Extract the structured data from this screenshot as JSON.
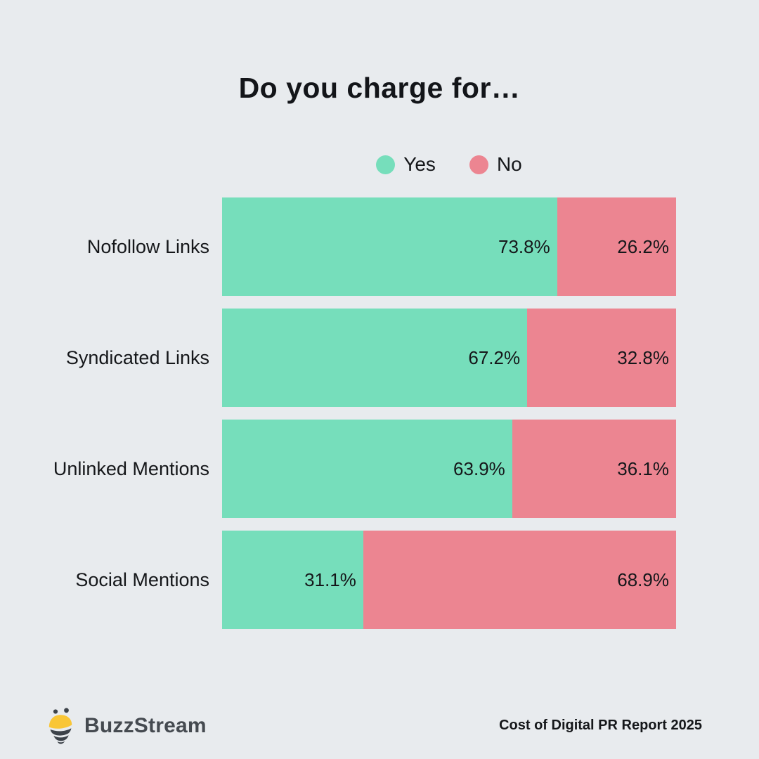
{
  "page": {
    "background": "#E8EBEE"
  },
  "chart_data": {
    "type": "bar",
    "orientation": "horizontal",
    "stacked": true,
    "title": "Do you charge for…",
    "categories": [
      "Nofollow Links",
      "Syndicated Links",
      "Unlinked Mentions",
      "Social Mentions"
    ],
    "series": [
      {
        "name": "Yes",
        "color": "#76DEBB",
        "values": [
          73.8,
          67.2,
          63.9,
          31.1
        ]
      },
      {
        "name": "No",
        "color": "#EC8591",
        "values": [
          26.2,
          32.8,
          36.1,
          68.9
        ]
      }
    ],
    "value_labels": [
      [
        "73.8%",
        "26.2%"
      ],
      [
        "67.2%",
        "32.8%"
      ],
      [
        "63.9%",
        "36.1%"
      ],
      [
        "31.1%",
        "68.9%"
      ]
    ],
    "xlim": [
      0,
      100
    ],
    "grid": false,
    "legend_position": "top-center"
  },
  "footer": {
    "brand": "BuzzStream",
    "report": "Cost of Digital PR Report 2025",
    "brand_colors": {
      "yellow": "#F9C636",
      "dark": "#3D434A",
      "text": "#454A50"
    }
  }
}
